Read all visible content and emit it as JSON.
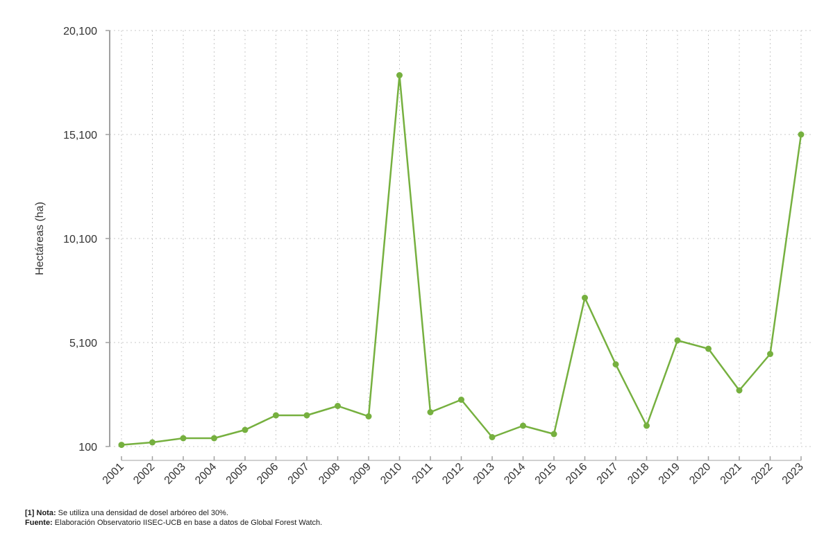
{
  "chart_data": {
    "type": "line",
    "ylabel": "Hectáreas (ha)",
    "xlabel": "",
    "title": "",
    "ylim": [
      100,
      20100
    ],
    "yticks": [
      100,
      5100,
      10100,
      15100,
      20100
    ],
    "ytick_labels": [
      "100",
      "5,100",
      "10,100",
      "15,100",
      "20,100"
    ],
    "grid": true,
    "colors": {
      "line": "#76b03f",
      "grid": "#c8c8c8",
      "axis": "#a0a0a0"
    },
    "x": [
      "2001",
      "2002",
      "2003",
      "2004",
      "2005",
      "2006",
      "2007",
      "2008",
      "2009",
      "2010",
      "2011",
      "2012",
      "2013",
      "2014",
      "2015",
      "2016",
      "2017",
      "2018",
      "2019",
      "2020",
      "2021",
      "2022",
      "2023"
    ],
    "series": [
      {
        "values": [
          180,
          300,
          500,
          500,
          900,
          1600,
          1600,
          2050,
          1550,
          17950,
          1750,
          2350,
          550,
          1100,
          700,
          7250,
          4050,
          1100,
          5200,
          4800,
          2800,
          4550,
          15100
        ]
      }
    ]
  },
  "notes": {
    "note_label": "[1] Nota:",
    "note_text": " Se utiliza una densidad de dosel arbóreo del 30%.",
    "source_label": "Fuente:",
    "source_text": " Elaboración Observatorio IISEC-UCB en base a datos de Global Forest Watch."
  }
}
